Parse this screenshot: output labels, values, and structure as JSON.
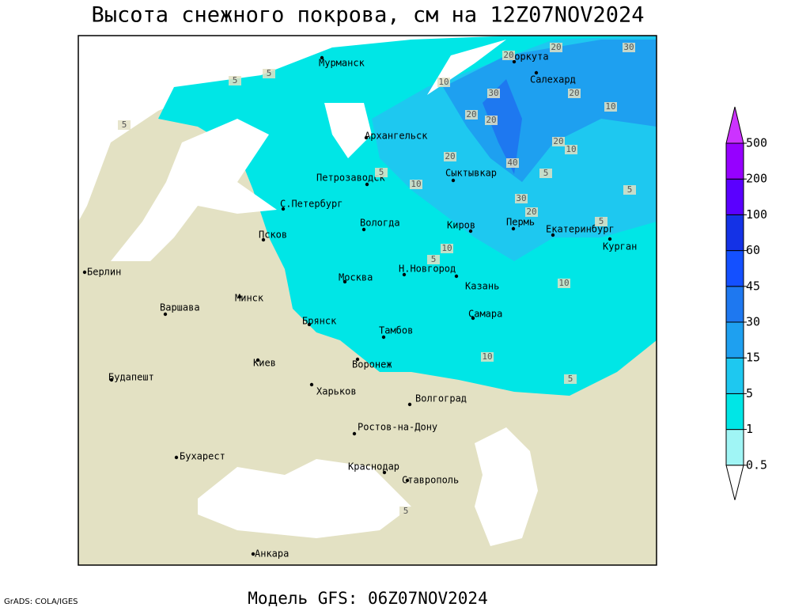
{
  "title": "Высота снежного покрова, см на 12Z07NOV2024",
  "footer": "Модель GFS: 06Z07NOV2024",
  "credit": "GrADS: COLA/IGES",
  "cities": [
    "Мурманск",
    "Воркута",
    "Салехард",
    "Архангельск",
    "Петрозаводск",
    "С.Петербург",
    "Сыктывкар",
    "Вологда",
    "Киров",
    "Пермь",
    "Екатеринбург",
    "Курган",
    "Псков",
    "Н.Новгород",
    "Москва",
    "Казань",
    "Берлин",
    "Минск",
    "Варшава",
    "Брянск",
    "Тамбов",
    "Самара",
    "Киев",
    "Воронеж",
    "Будапешт",
    "Харьков",
    "Волгоград",
    "Ростов-на-Дону",
    "Бухарест",
    "Краснодар",
    "Ставрополь",
    "Анкара"
  ],
  "contour_labels": [
    5,
    5,
    5,
    10,
    30,
    20,
    20,
    30,
    20,
    10,
    20,
    20,
    20,
    10,
    20,
    40,
    5,
    5,
    10,
    5,
    30,
    20,
    5,
    10,
    5,
    10,
    10,
    5,
    5
  ],
  "legend": {
    "levels": [
      0.5,
      1,
      5,
      15,
      30,
      45,
      60,
      100,
      200,
      500
    ],
    "colors": [
      "#ffffff",
      "#a0f5f5",
      "#00e6e6",
      "#1ec8f0",
      "#1ea0f0",
      "#1e78f0",
      "#1450ff",
      "#1432e6",
      "#5a00ff",
      "#9600ff",
      "#cc33ff"
    ]
  }
}
